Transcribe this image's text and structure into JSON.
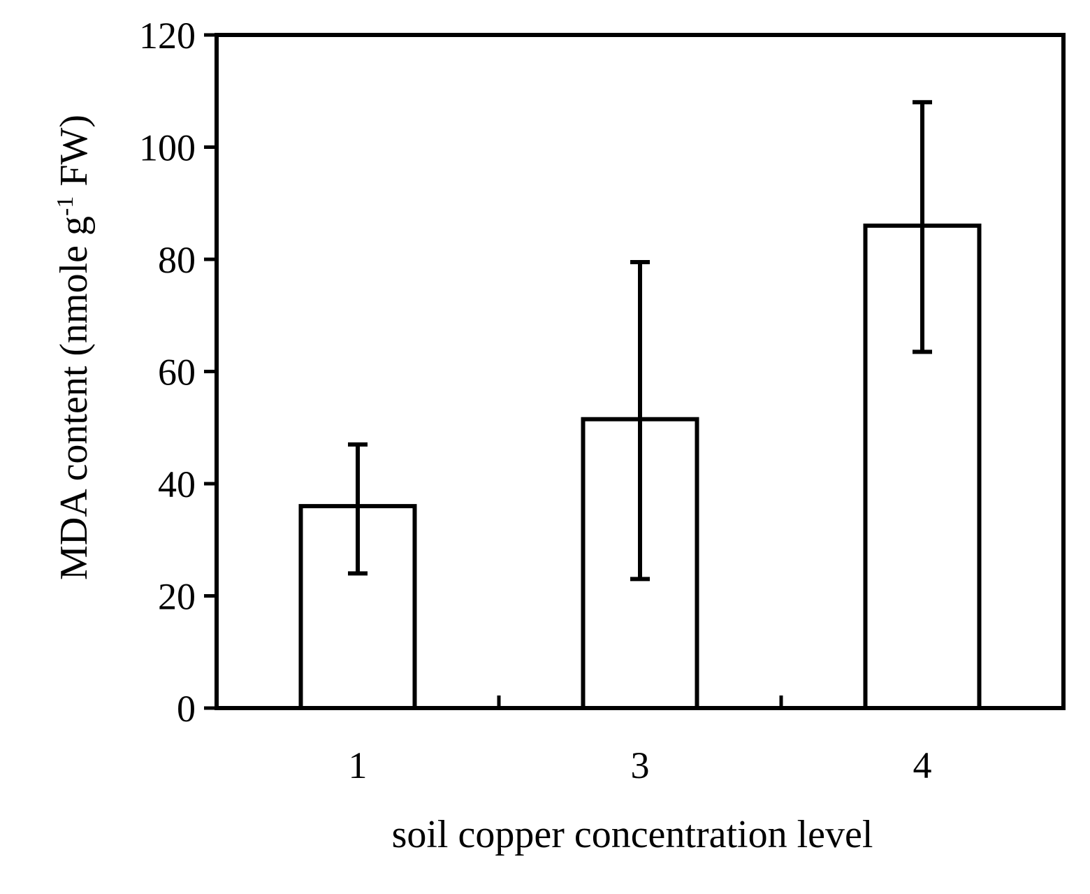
{
  "chart_data": {
    "type": "bar",
    "categories": [
      "1",
      "3",
      "4"
    ],
    "series": [
      {
        "values": [
          36,
          51.5,
          86
        ],
        "error_low": [
          24,
          23,
          63.5
        ],
        "error_high": [
          47,
          79.5,
          108
        ]
      }
    ],
    "xlabel": "soil copper concentration level",
    "ylabel_parts": {
      "before": "MDA content (nmole g",
      "superscript": "-1",
      "after": " FW)"
    },
    "ylim": [
      0,
      120
    ],
    "yticks": [
      0,
      20,
      40,
      60,
      80,
      100,
      120
    ],
    "grid": false,
    "legend": "none",
    "colors": {
      "bar_fill": "#ffffff",
      "stroke": "#000000"
    }
  }
}
